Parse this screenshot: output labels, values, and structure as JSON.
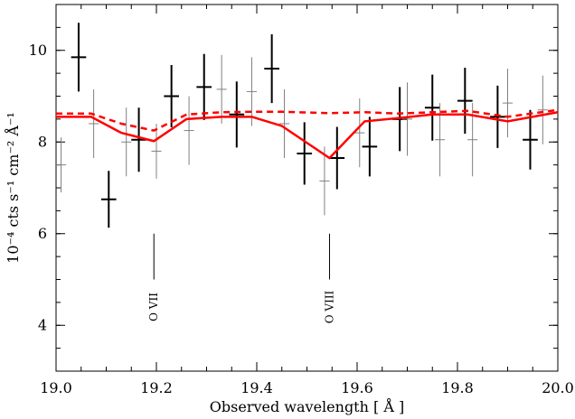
{
  "chart_data": {
    "type": "scatter",
    "title": "",
    "xlabel": "Observed wavelength [ Å ]",
    "ylabel": "10⁻⁴ cts s⁻¹ cm⁻² Å⁻¹",
    "xlim": [
      19.0,
      20.0
    ],
    "ylim": [
      3.0,
      11.0
    ],
    "grid": false,
    "x_ticks": [
      "19.0",
      "19.2",
      "19.4",
      "19.6",
      "19.8",
      "20.0"
    ],
    "y_ticks": [
      "4",
      "6",
      "8",
      "10"
    ],
    "colors": {
      "model": "#ff0000",
      "data_dark": "#000000",
      "data_grey": "#808080"
    },
    "series": [
      {
        "style": "errorbars",
        "color": "#000000",
        "points": [
          {
            "x": 19.045,
            "y": 9.85,
            "xerr": 0.015,
            "yerr": 0.75
          },
          {
            "x": 19.105,
            "y": 6.75,
            "xerr": 0.015,
            "yerr": 0.62
          },
          {
            "x": 19.165,
            "y": 8.05,
            "xerr": 0.015,
            "yerr": 0.7
          },
          {
            "x": 19.23,
            "y": 9.0,
            "xerr": 0.015,
            "yerr": 0.68
          },
          {
            "x": 19.295,
            "y": 9.2,
            "xerr": 0.015,
            "yerr": 0.72
          },
          {
            "x": 19.36,
            "y": 8.6,
            "xerr": 0.015,
            "yerr": 0.72
          },
          {
            "x": 19.43,
            "y": 9.6,
            "xerr": 0.015,
            "yerr": 0.75
          },
          {
            "x": 19.495,
            "y": 7.75,
            "xerr": 0.015,
            "yerr": 0.68
          },
          {
            "x": 19.56,
            "y": 7.65,
            "xerr": 0.015,
            "yerr": 0.68
          },
          {
            "x": 19.625,
            "y": 7.9,
            "xerr": 0.015,
            "yerr": 0.65
          },
          {
            "x": 19.685,
            "y": 8.5,
            "xerr": 0.015,
            "yerr": 0.7
          },
          {
            "x": 19.75,
            "y": 8.75,
            "xerr": 0.015,
            "yerr": 0.72
          },
          {
            "x": 19.815,
            "y": 8.9,
            "xerr": 0.015,
            "yerr": 0.72
          },
          {
            "x": 19.88,
            "y": 8.55,
            "xerr": 0.015,
            "yerr": 0.68
          },
          {
            "x": 19.945,
            "y": 8.05,
            "xerr": 0.015,
            "yerr": 0.65
          }
        ]
      },
      {
        "style": "errorbars",
        "color": "#808080",
        "points": [
          {
            "x": 19.01,
            "y": 7.5,
            "xerr": 0.01,
            "yerr": 0.6
          },
          {
            "x": 19.075,
            "y": 8.4,
            "xerr": 0.01,
            "yerr": 0.75
          },
          {
            "x": 19.14,
            "y": 8.0,
            "xerr": 0.01,
            "yerr": 0.75
          },
          {
            "x": 19.2,
            "y": 7.8,
            "xerr": 0.01,
            "yerr": 0.6
          },
          {
            "x": 19.265,
            "y": 8.25,
            "xerr": 0.01,
            "yerr": 0.75
          },
          {
            "x": 19.33,
            "y": 9.15,
            "xerr": 0.01,
            "yerr": 0.75
          },
          {
            "x": 19.39,
            "y": 9.1,
            "xerr": 0.01,
            "yerr": 0.75
          },
          {
            "x": 19.455,
            "y": 8.4,
            "xerr": 0.01,
            "yerr": 0.75
          },
          {
            "x": 19.535,
            "y": 7.15,
            "xerr": 0.01,
            "yerr": 0.75
          },
          {
            "x": 19.605,
            "y": 8.2,
            "xerr": 0.01,
            "yerr": 0.75
          },
          {
            "x": 19.7,
            "y": 8.5,
            "xerr": 0.01,
            "yerr": 0.8
          },
          {
            "x": 19.765,
            "y": 8.05,
            "xerr": 0.01,
            "yerr": 0.8
          },
          {
            "x": 19.83,
            "y": 8.05,
            "xerr": 0.01,
            "yerr": 0.8
          },
          {
            "x": 19.9,
            "y": 8.85,
            "xerr": 0.01,
            "yerr": 0.75
          },
          {
            "x": 19.97,
            "y": 8.7,
            "xerr": 0.01,
            "yerr": 0.75
          }
        ]
      },
      {
        "style": "line-solid",
        "color": "#ff0000",
        "x": [
          19.0,
          19.07,
          19.13,
          19.195,
          19.26,
          19.33,
          19.39,
          19.45,
          19.545,
          19.615,
          19.68,
          19.75,
          19.82,
          19.9,
          20.0
        ],
        "y": [
          8.55,
          8.55,
          8.2,
          8.02,
          8.5,
          8.55,
          8.55,
          8.35,
          7.65,
          8.45,
          8.52,
          8.6,
          8.6,
          8.45,
          8.65
        ]
      },
      {
        "style": "line-dashed",
        "color": "#ff0000",
        "x": [
          19.0,
          19.07,
          19.13,
          19.195,
          19.26,
          19.33,
          19.39,
          19.45,
          19.545,
          19.615,
          19.68,
          19.75,
          19.82,
          19.9,
          20.0
        ],
        "y": [
          8.62,
          8.62,
          8.4,
          8.25,
          8.6,
          8.65,
          8.66,
          8.66,
          8.63,
          8.65,
          8.62,
          8.65,
          8.68,
          8.55,
          8.7
        ]
      }
    ],
    "annotations": [
      {
        "text": "O VII",
        "x": 19.195,
        "marker_y": [
          5.0,
          6.0
        ],
        "label_y": 4.4
      },
      {
        "text": "O VIII",
        "x": 19.545,
        "marker_y": [
          5.0,
          6.0
        ],
        "label_y": 4.4
      }
    ]
  }
}
